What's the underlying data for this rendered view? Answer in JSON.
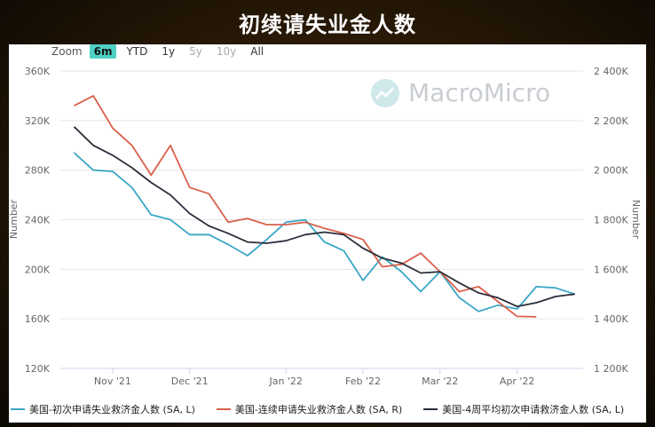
{
  "title": "初续请失业金人数",
  "zoom": {
    "label": "Zoom",
    "buttons": [
      {
        "label": "6m",
        "active": true,
        "enabled": true
      },
      {
        "label": "YTD",
        "active": false,
        "enabled": true
      },
      {
        "label": "1y",
        "active": false,
        "enabled": true
      },
      {
        "label": "5y",
        "active": false,
        "enabled": false
      },
      {
        "label": "10y",
        "active": false,
        "enabled": false
      },
      {
        "label": "All",
        "active": false,
        "enabled": true
      }
    ]
  },
  "watermark": "MacroMicro",
  "colors": {
    "initial": "#3aa7c7",
    "continued": "#d9604a",
    "avg4w": "#2a2f3a"
  },
  "chart_data": {
    "type": "line",
    "x_tick_labels": [
      "Nov '21",
      "Dec '21",
      "Jan '22",
      "Feb '22",
      "Mar '22",
      "Apr '22"
    ],
    "x_tick_dates": [
      "2021-11-06",
      "2021-12-04",
      "2022-01-08",
      "2022-02-05",
      "2022-03-05",
      "2022-04-02"
    ],
    "ylabel_left": "Number",
    "ylabel_right": "Number",
    "ylim_left": [
      120000,
      360000
    ],
    "yticks_left": [
      "120K",
      "160K",
      "200K",
      "240K",
      "280K",
      "320K",
      "360K"
    ],
    "ylim_right": [
      1200000,
      2400000
    ],
    "yticks_right": [
      "1 200K",
      "1 400K",
      "1 600K",
      "1 800K",
      "2 000K",
      "2 200K",
      "2 400K"
    ],
    "grid": true,
    "legend_position": "bottom",
    "series": [
      {
        "name": "美国-初次申请失业救济金人数 (SA, L)",
        "axis": "left",
        "x": [
          "2021-10-23",
          "2021-10-30",
          "2021-11-06",
          "2021-11-13",
          "2021-11-20",
          "2021-11-27",
          "2021-12-04",
          "2021-12-11",
          "2021-12-18",
          "2021-12-25",
          "2022-01-01",
          "2022-01-08",
          "2022-01-15",
          "2022-01-22",
          "2022-01-29",
          "2022-02-05",
          "2022-02-12",
          "2022-02-19",
          "2022-02-26",
          "2022-03-05",
          "2022-03-12",
          "2022-03-19",
          "2022-03-26",
          "2022-04-02",
          "2022-04-09",
          "2022-04-16",
          "2022-04-23"
        ],
        "values": [
          294000,
          280000,
          279000,
          266000,
          244000,
          240000,
          228000,
          228000,
          220000,
          211000,
          224000,
          238000,
          240000,
          222000,
          215000,
          191000,
          210000,
          198000,
          182000,
          198000,
          177000,
          166000,
          171000,
          168000,
          186000,
          185000,
          180000
        ]
      },
      {
        "name": "美国-连续申请失业救济金人数 (SA, R)",
        "axis": "right",
        "x": [
          "2021-10-23",
          "2021-10-30",
          "2021-11-06",
          "2021-11-13",
          "2021-11-20",
          "2021-11-27",
          "2021-12-04",
          "2021-12-11",
          "2021-12-18",
          "2021-12-25",
          "2022-01-01",
          "2022-01-08",
          "2022-01-15",
          "2022-01-22",
          "2022-01-29",
          "2022-02-05",
          "2022-02-12",
          "2022-02-19",
          "2022-02-26",
          "2022-03-05",
          "2022-03-12",
          "2022-03-19",
          "2022-03-26",
          "2022-04-02",
          "2022-04-09"
        ],
        "values": [
          2260000,
          2300000,
          2170000,
          2100000,
          1980000,
          2100000,
          1930000,
          1905000,
          1790000,
          1805000,
          1780000,
          1780000,
          1790000,
          1765000,
          1745000,
          1720000,
          1610000,
          1620000,
          1665000,
          1590000,
          1510000,
          1530000,
          1470000,
          1410000,
          1408000
        ]
      },
      {
        "name": "美国-4周平均初次申请救济金人数 (SA, L)",
        "axis": "left",
        "x": [
          "2021-10-23",
          "2021-10-30",
          "2021-11-06",
          "2021-11-13",
          "2021-11-20",
          "2021-11-27",
          "2021-12-04",
          "2021-12-11",
          "2021-12-18",
          "2021-12-25",
          "2022-01-01",
          "2022-01-08",
          "2022-01-15",
          "2022-01-22",
          "2022-01-29",
          "2022-02-05",
          "2022-02-12",
          "2022-02-19",
          "2022-02-26",
          "2022-03-05",
          "2022-03-12",
          "2022-03-19",
          "2022-03-26",
          "2022-04-02",
          "2022-04-09",
          "2022-04-16",
          "2022-04-23"
        ],
        "values": [
          315000,
          300000,
          292000,
          282000,
          270000,
          260000,
          245000,
          235000,
          229000,
          222000,
          221000,
          223000,
          228000,
          230000,
          228000,
          217000,
          209000,
          205000,
          197000,
          198000,
          189000,
          181000,
          177000,
          170000,
          173000,
          178000,
          180000
        ]
      }
    ]
  }
}
